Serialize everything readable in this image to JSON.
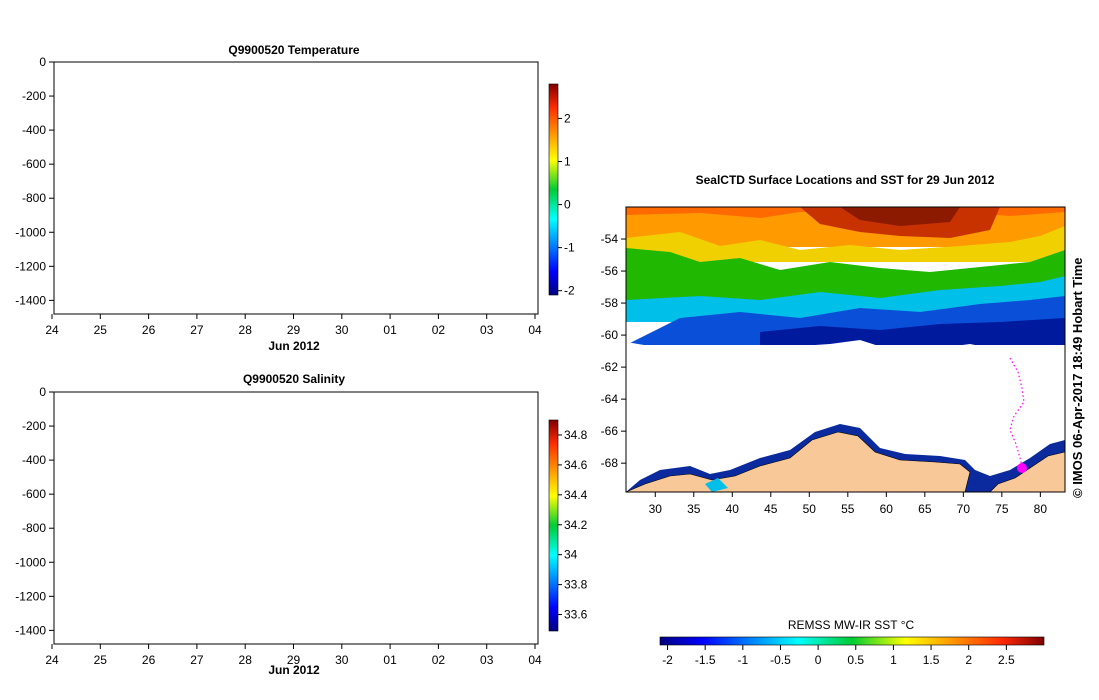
{
  "chart_data": [
    {
      "type": "line",
      "title": "Q9900520  Temperature",
      "x_tick_labels": [
        "24",
        "25",
        "26",
        "27",
        "28",
        "29",
        "30",
        "01",
        "02",
        "03",
        "04"
      ],
      "xlabel": "Jun 2012",
      "y_ticks": [
        0,
        -200,
        -400,
        -600,
        -800,
        -1000,
        -1200,
        -1400
      ],
      "ylim": [
        -1480,
        0
      ],
      "series": [],
      "colorbar": {
        "ticks": [
          2,
          1,
          0,
          -1,
          -2
        ],
        "range": [
          -2.1,
          2.8
        ]
      }
    },
    {
      "type": "line",
      "title": "Q9900520  Salinity",
      "x_tick_labels": [
        "24",
        "25",
        "26",
        "27",
        "28",
        "29",
        "30",
        "01",
        "02",
        "03",
        "04"
      ],
      "xlabel": "Jun 2012",
      "y_ticks": [
        0,
        -200,
        -400,
        -600,
        -800,
        -1000,
        -1200,
        -1400
      ],
      "ylim": [
        -1480,
        0
      ],
      "series": [],
      "colorbar": {
        "ticks": [
          "34.8",
          "34.6",
          "34.4",
          "34.2",
          "34",
          "33.8",
          "33.6"
        ],
        "values": [
          34.8,
          34.6,
          34.4,
          34.2,
          34.0,
          33.8,
          33.6
        ],
        "range": [
          33.49,
          34.9
        ]
      }
    },
    {
      "type": "heatmap",
      "title": "SealCTD Surface Locations and SST for 29 Jun 2012",
      "x_ticks": [
        30,
        35,
        40,
        45,
        50,
        55,
        60,
        65,
        70,
        75,
        80
      ],
      "y_ticks": [
        -54,
        -56,
        -58,
        -60,
        -62,
        -64,
        -66,
        -68
      ],
      "xlim": [
        26.2,
        83.2
      ],
      "ylim": [
        -69.8,
        -52
      ],
      "colorbar": {
        "label": "REMSS MW-IR SST °C",
        "ticks": [
          "-2",
          "-1.5",
          "-1",
          "-0.5",
          "0",
          "0.5",
          "1",
          "1.5",
          "2",
          "2.5"
        ],
        "values": [
          -2,
          -1.5,
          -1,
          -0.5,
          0,
          0.5,
          1,
          1.5,
          2,
          2.5
        ],
        "range": [
          -2.1,
          3.0
        ]
      },
      "land_color": "#f8c898",
      "track_color": "#ff00ff"
    }
  ],
  "credit": "© IMOS 06-Apr-2017 18:49 Hobart Time"
}
